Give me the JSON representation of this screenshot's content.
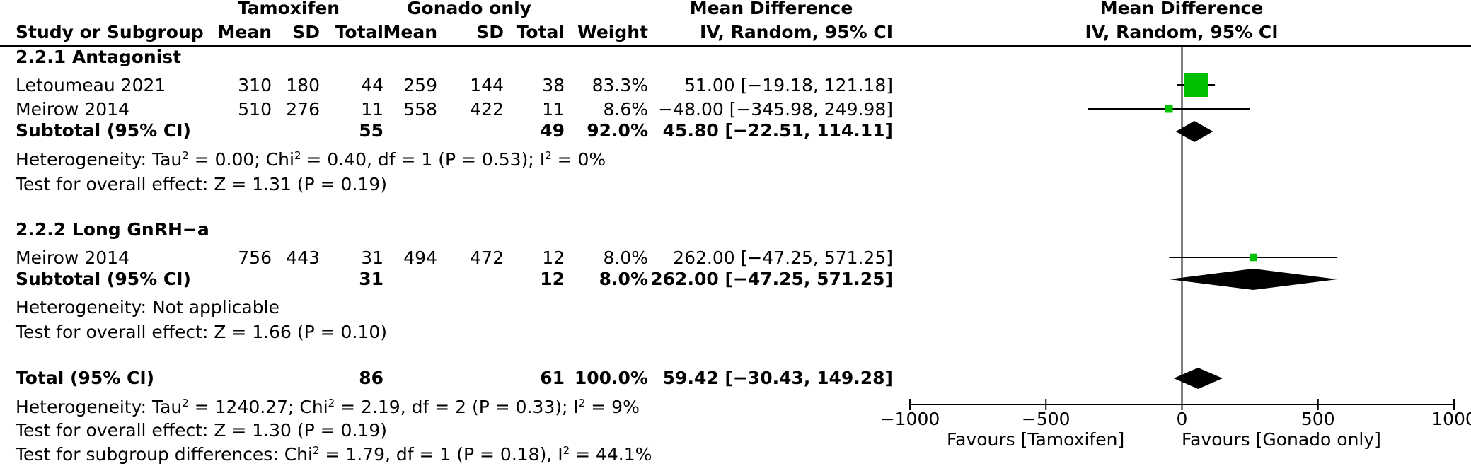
{
  "header": {
    "group1": "Tamoxifen",
    "group2": "Gonado only",
    "effect_title": "Mean Difference",
    "effect_method": "IV, Random, 95% CI",
    "plot_title": "Mean Difference",
    "plot_method": "IV, Random, 95% CI",
    "cols": {
      "study": "Study or Subgroup",
      "mean1": "Mean",
      "sd1": "SD",
      "total1": "Total",
      "mean2": "Mean",
      "sd2": "SD",
      "total2": "Total",
      "weight": "Weight"
    }
  },
  "subgroups": [
    {
      "name": "2.2.1 Antagonist",
      "studies": [
        {
          "study": "Letoumeau 2021",
          "mean1": "310",
          "sd1": "180",
          "total1": "44",
          "mean2": "259",
          "sd2": "144",
          "total2": "38",
          "weight": "83.3%",
          "ci": "51.00 [−19.18, 121.18]"
        },
        {
          "study": "Meirow 2014",
          "mean1": "510",
          "sd1": "276",
          "total1": "11",
          "mean2": "558",
          "sd2": "422",
          "total2": "11",
          "weight": "8.6%",
          "ci": "−48.00 [−345.98, 249.98]"
        }
      ],
      "subtotal": {
        "label": "Subtotal (95% CI)",
        "total1": "55",
        "total2": "49",
        "weight": "92.0%",
        "ci": "45.80 [−22.51, 114.11]"
      },
      "heterogeneity": {
        "prefix": "Heterogeneity: Tau",
        "tau_val": " = 0.00; Chi",
        "chi_val": " = 0.40, df = 1 (P = 0.53); I",
        "i2_val": " = 0%"
      },
      "overall": "Test for overall effect: Z = 1.31 (P = 0.19)"
    },
    {
      "name": "2.2.2 Long GnRH−a",
      "studies": [
        {
          "study": "Meirow 2014",
          "mean1": "756",
          "sd1": "443",
          "total1": "31",
          "mean2": "494",
          "sd2": "472",
          "total2": "12",
          "weight": "8.0%",
          "ci": "262.00 [−47.25, 571.25]"
        }
      ],
      "subtotal": {
        "label": "Subtotal (95% CI)",
        "total1": "31",
        "total2": "12",
        "weight": "8.0%",
        "ci": "262.00 [−47.25, 571.25]"
      },
      "heterogeneity_text": "Heterogeneity: Not applicable",
      "overall": "Test for overall effect: Z = 1.66 (P = 0.10)"
    }
  ],
  "total": {
    "label": "Total (95% CI)",
    "total1": "86",
    "total2": "61",
    "weight": "100.0%",
    "ci": "59.42 [−30.43, 149.28]"
  },
  "total_heterogeneity": {
    "prefix": "Heterogeneity: Tau",
    "tau_val": " = 1240.27; Chi",
    "chi_val": " = 2.19, df = 2 (P = 0.33); I",
    "i2_val": " = 9%"
  },
  "total_overall": "Test for overall effect: Z = 1.30 (P = 0.19)",
  "subgroup_diff": {
    "prefix": "Test for subgroup differences: Chi",
    "chi_val": " = 1.79, df = 1 (P = 0.18), I",
    "i2_val": " = 44.1%"
  },
  "sup2": "2",
  "axis": {
    "left_label": "Favours [Tamoxifen]",
    "right_label": "Favours [Gonado only]"
  },
  "chart_data": {
    "type": "forest",
    "xlim": [
      -1000,
      1000
    ],
    "ticks": [
      -1000,
      -500,
      0,
      500,
      1000
    ],
    "tick_labels": [
      "−1000",
      "−500",
      "0",
      "500",
      "1000"
    ],
    "studies": [
      {
        "study": "Letoumeau 2021",
        "md": 51.0,
        "lo": -19.18,
        "hi": 121.18,
        "weight": 83.3
      },
      {
        "study": "Meirow 2014 (Antagonist)",
        "md": -48.0,
        "lo": -345.98,
        "hi": 249.98,
        "weight": 8.6
      },
      {
        "study": "Meirow 2014 (Long GnRH-a)",
        "md": 262.0,
        "lo": -47.25,
        "hi": 571.25,
        "weight": 8.0
      }
    ],
    "diamonds": [
      {
        "name": "Subtotal Antagonist",
        "md": 45.8,
        "lo": -22.51,
        "hi": 114.11
      },
      {
        "name": "Subtotal Long GnRH-a",
        "md": 262.0,
        "lo": -47.25,
        "hi": 571.25
      },
      {
        "name": "Total",
        "md": 59.42,
        "lo": -30.43,
        "hi": 149.28
      }
    ],
    "colors": {
      "square": "#00c000",
      "diamond": "#000000"
    }
  }
}
